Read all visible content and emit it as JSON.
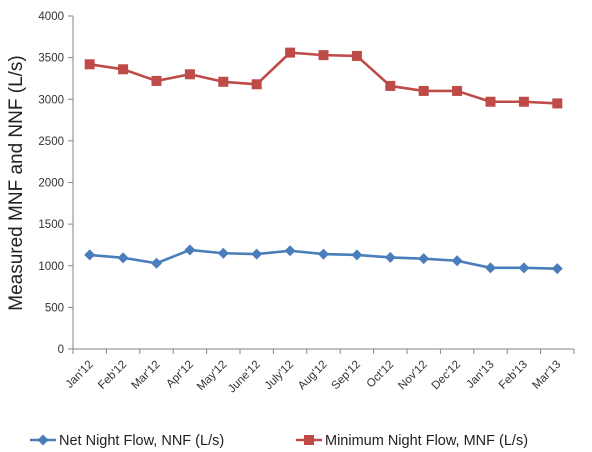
{
  "chart_data": {
    "type": "line",
    "title": "",
    "xlabel": "",
    "ylabel": "Measured MNF and NNF (L/s)",
    "ylim": [
      0,
      4000
    ],
    "yticks": [
      0,
      500,
      1000,
      1500,
      2000,
      2500,
      3000,
      3500,
      4000
    ],
    "grid": false,
    "legend_position": "bottom",
    "categories": [
      "Jan'12",
      "Feb'12",
      "Mar'12",
      "Apr'12",
      "May'12",
      "June'12",
      "July'12",
      "Aug'12",
      "Sep'12",
      "Oct'12",
      "Nov'12",
      "Dec'12",
      "Jan'13",
      "Feb'13",
      "Mar'13"
    ],
    "series": [
      {
        "name": "Net  Night Flow,  NNF (L/s)",
        "color": "#4a7ebb",
        "marker": "diamond",
        "values": [
          1130,
          1095,
          1030,
          1190,
          1150,
          1140,
          1180,
          1140,
          1130,
          1100,
          1085,
          1060,
          975,
          975,
          965
        ]
      },
      {
        "name": "Minimum Night Flow, MNF (L/s)",
        "color": "#be4b48",
        "marker": "square",
        "values": [
          3420,
          3360,
          3220,
          3300,
          3210,
          3180,
          3560,
          3530,
          3520,
          3160,
          3100,
          3100,
          2970,
          2970,
          2950
        ]
      }
    ]
  }
}
